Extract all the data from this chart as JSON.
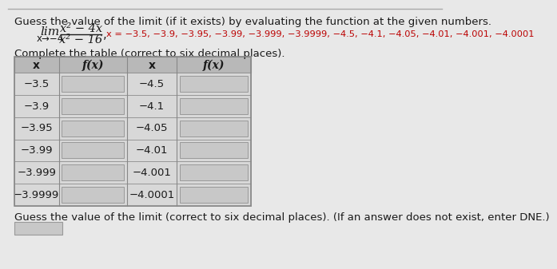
{
  "title_text": "Guess the value of the limit (if it exists) by evaluating the function at the given numbers.",
  "limit_xvals": "x = −3.5, −3.9, −3.95, −3.99, −3.999, −3.9999, −4.5, −4.1, −4.05, −4.01, −4.001, −4.0001",
  "table_instruction": "Complete the table (correct to six decimal places).",
  "col_headers": [
    "x",
    "f(x)",
    "x",
    "f(x)"
  ],
  "left_x": [
    "−3.5",
    "−3.9",
    "−3.95",
    "−3.99",
    "−3.999",
    "−3.9999"
  ],
  "right_x": [
    "−4.5",
    "−4.1",
    "−4.05",
    "−4.01",
    "−4.001",
    "−4.0001"
  ],
  "footer_text": "Guess the value of the limit (correct to six decimal places). (If an answer does not exist, enter DNE.)",
  "bg_color": "#e8e8e8",
  "table_header_bg": "#b8b8b8",
  "table_row_bg": "#d8d8d8",
  "input_box_bg": "#c8c8c8",
  "input_box_border": "#999999",
  "border_color": "#888888",
  "text_color_black": "#1a1a1a",
  "text_color_red": "#bb0000",
  "font_size_title": 9.5,
  "font_size_body": 9.5,
  "font_size_table": 9.5,
  "font_size_math": 10.5,
  "font_size_lim": 11,
  "font_size_sub": 8.5,
  "font_size_xvals": 8.2
}
